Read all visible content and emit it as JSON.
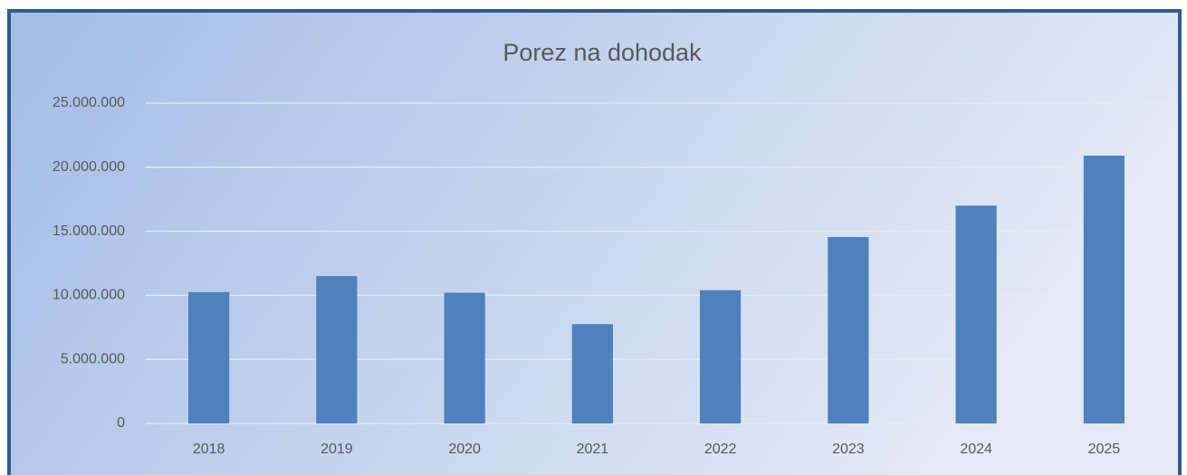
{
  "chart_data": {
    "type": "bar",
    "title": "Porez na dohodak",
    "categories": [
      "2018",
      "2019",
      "2020",
      "2021",
      "2022",
      "2023",
      "2024",
      "2025"
    ],
    "values": [
      10250000,
      11500000,
      10200000,
      7750000,
      10400000,
      14550000,
      17000000,
      20900000
    ],
    "color": "#4f81bd",
    "ylim": [
      0,
      25000000
    ],
    "yticks": [
      0,
      {
        "value": 5000000,
        "label": "5.000.000"
      },
      {
        "value": 10000000,
        "label": "10.000.000"
      },
      {
        "value": 15000000,
        "label": "15.000.000"
      },
      {
        "value": 20000000,
        "label": "20.000.000"
      },
      {
        "value": 25000000,
        "label": "25.000.000"
      }
    ],
    "grid": true
  }
}
